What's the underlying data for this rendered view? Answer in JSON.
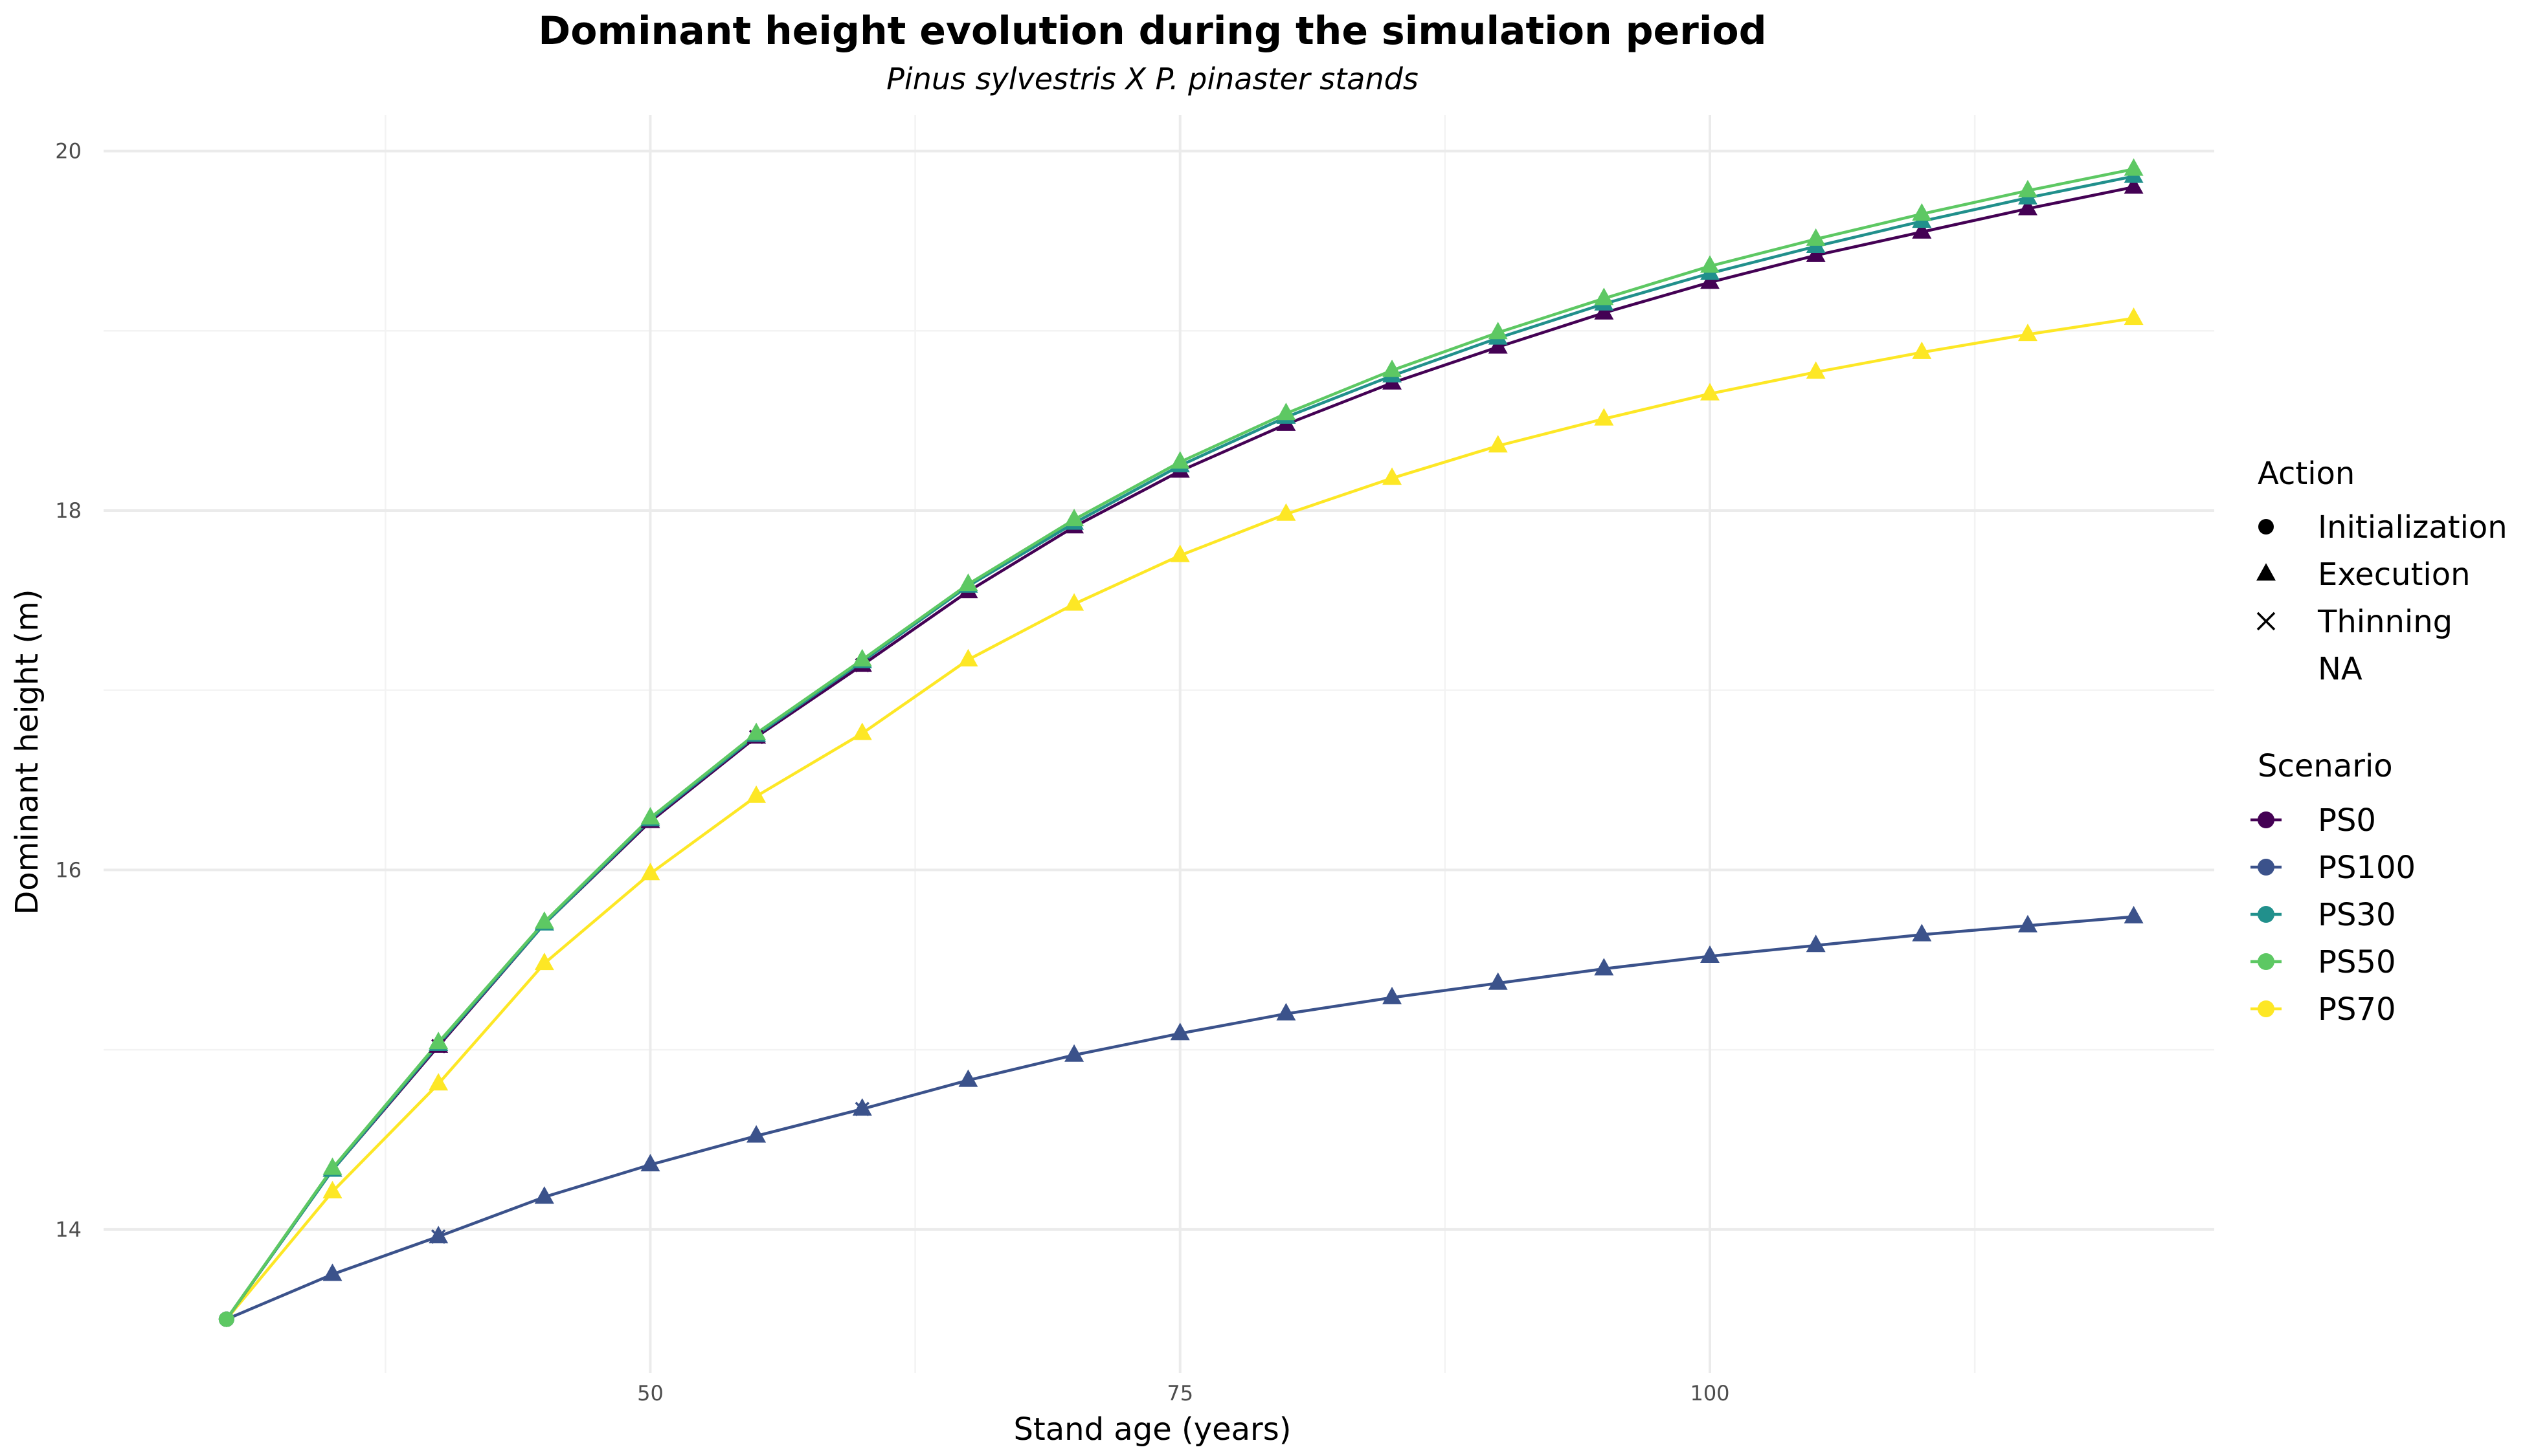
{
  "chart_data": {
    "type": "line",
    "title": "Dominant height evolution during the simulation period",
    "subtitle": "Pinus sylvestris X P. pinaster stands",
    "xlabel": "Stand age (years)",
    "ylabel": "Dominant height (m)",
    "xlim": [
      24.2,
      123.8
    ],
    "ylim": [
      13.2,
      20.2
    ],
    "x_ticks": [
      50,
      75,
      100
    ],
    "y_ticks": [
      14,
      16,
      18,
      20
    ],
    "grid": true,
    "legend_position": "right",
    "legend": {
      "action": {
        "title": "Action",
        "entries": [
          {
            "label": "Initialization",
            "shape": "circle"
          },
          {
            "label": "Execution",
            "shape": "triangle"
          },
          {
            "label": "Thinning",
            "shape": "cross"
          },
          {
            "label": "NA",
            "shape": "none"
          }
        ]
      },
      "scenario": {
        "title": "Scenario",
        "entries": [
          "PS0",
          "PS100",
          "PS30",
          "PS50",
          "PS70"
        ]
      }
    },
    "x": [
      30,
      35,
      40,
      45,
      50,
      55,
      60,
      65,
      70,
      75,
      80,
      85,
      90,
      95,
      100,
      105,
      110,
      115,
      120
    ],
    "actions": [
      "Initialization",
      "Execution",
      "Execution",
      "Execution",
      "Execution",
      "Execution",
      "Execution",
      "Execution",
      "Execution",
      "Execution",
      "Execution",
      "Execution",
      "Execution",
      "Execution",
      "Execution",
      "Execution",
      "Execution",
      "Execution",
      "Execution"
    ],
    "series": [
      {
        "name": "PS0",
        "color": "#440154",
        "values": [
          13.5,
          14.33,
          15.02,
          15.7,
          16.27,
          16.74,
          17.14,
          17.55,
          17.91,
          18.22,
          18.48,
          18.71,
          18.91,
          19.1,
          19.27,
          19.42,
          19.55,
          19.68,
          19.8
        ],
        "thinning_x": [
          40,
          55,
          60
        ]
      },
      {
        "name": "PS100",
        "color": "#3b528b",
        "values": [
          13.5,
          13.75,
          13.96,
          14.18,
          14.36,
          14.52,
          14.67,
          14.83,
          14.97,
          15.09,
          15.2,
          15.29,
          15.37,
          15.45,
          15.52,
          15.58,
          15.64,
          15.69,
          15.74
        ],
        "thinning_x": [
          40,
          60
        ]
      },
      {
        "name": "PS30",
        "color": "#21908c",
        "values": [
          13.5,
          14.33,
          15.03,
          15.7,
          16.28,
          16.75,
          17.16,
          17.58,
          17.93,
          18.25,
          18.52,
          18.75,
          18.96,
          19.15,
          19.32,
          19.47,
          19.61,
          19.74,
          19.86
        ],
        "thinning_x": []
      },
      {
        "name": "PS50",
        "color": "#5dc863",
        "values": [
          13.5,
          14.34,
          15.04,
          15.71,
          16.29,
          16.76,
          17.17,
          17.59,
          17.95,
          18.27,
          18.54,
          18.78,
          18.99,
          19.18,
          19.36,
          19.51,
          19.65,
          19.78,
          19.9
        ],
        "thinning_x": []
      },
      {
        "name": "PS70",
        "color": "#fde725",
        "values": [
          13.5,
          14.21,
          14.81,
          15.48,
          15.98,
          16.41,
          16.76,
          17.17,
          17.48,
          17.75,
          17.98,
          18.18,
          18.36,
          18.51,
          18.65,
          18.77,
          18.88,
          18.98,
          19.07
        ],
        "thinning_x": []
      }
    ]
  }
}
